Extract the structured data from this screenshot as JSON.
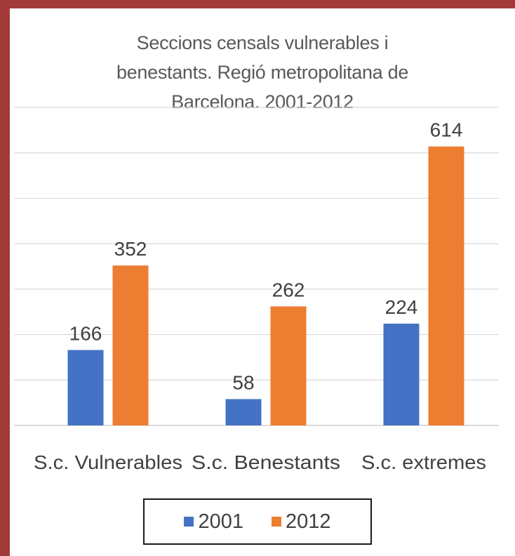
{
  "chart_data": {
    "type": "bar",
    "title_lines": [
      "Seccions censals vulnerables i",
      "benestants. Regió metropolitana de",
      "Barcelona. 2001-2012"
    ],
    "categories": [
      "S.c. Vulnerables",
      "S.c. Benestants",
      "S.c. extremes"
    ],
    "series": [
      {
        "name": "2001",
        "color": "#4472c4",
        "values": [
          166,
          58,
          224
        ]
      },
      {
        "name": "2012",
        "color": "#ed7d31",
        "values": [
          352,
          262,
          614
        ]
      }
    ],
    "ylim": [
      0,
      700
    ],
    "grid": true,
    "legend_position": "bottom"
  }
}
